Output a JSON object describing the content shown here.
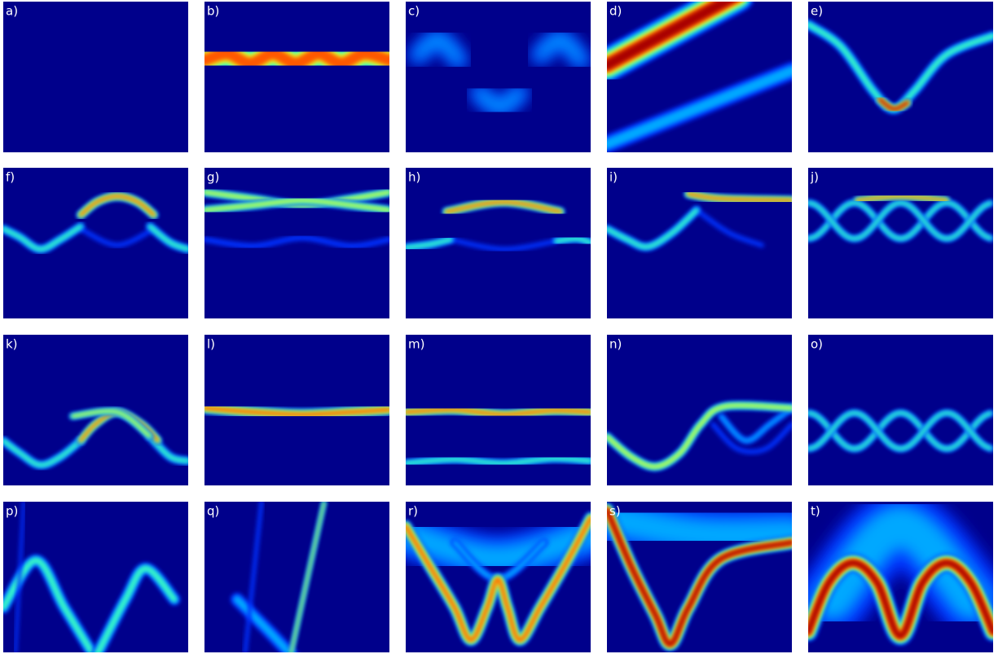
{
  "panels": [
    {
      "label": "a)"
    },
    {
      "label": "b)"
    },
    {
      "label": "c)"
    },
    {
      "label": "d)"
    },
    {
      "label": "e)"
    },
    {
      "label": "f)"
    },
    {
      "label": "g)"
    },
    {
      "label": "h)"
    },
    {
      "label": "i)"
    },
    {
      "label": "j)"
    },
    {
      "label": "k)"
    },
    {
      "label": "l)"
    },
    {
      "label": "m)"
    },
    {
      "label": "n)"
    },
    {
      "label": "o)"
    },
    {
      "label": "p)"
    },
    {
      "label": "q)"
    },
    {
      "label": "r)"
    },
    {
      "label": "s)"
    },
    {
      "label": "t)"
    }
  ]
}
